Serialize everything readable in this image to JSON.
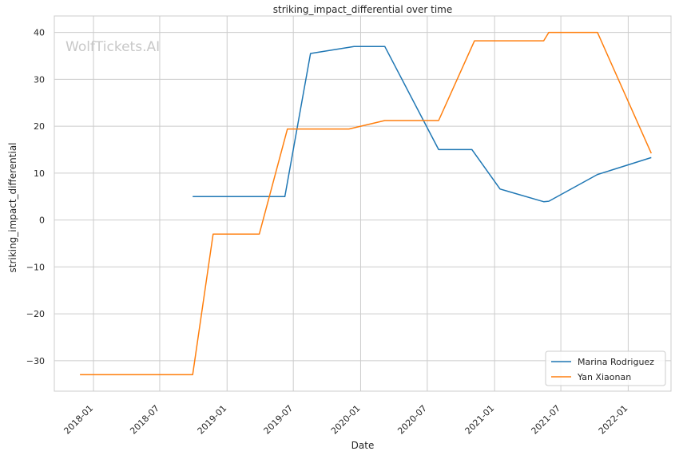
{
  "chart_data": {
    "type": "line",
    "title": "striking_impact_differential over time",
    "xlabel": "Date",
    "ylabel": "striking_impact_differential",
    "watermark": "WolfTickets.AI",
    "x_ticks": [
      "2018-01",
      "2018-07",
      "2019-01",
      "2019-07",
      "2020-01",
      "2020-07",
      "2021-01",
      "2021-07",
      "2022-01"
    ],
    "y_ticks": [
      40,
      30,
      20,
      10,
      0,
      -10,
      -20,
      -30
    ],
    "y_tick_labels": [
      "40",
      "30",
      "20",
      "10",
      "0",
      "−10",
      "−20",
      "−30"
    ],
    "xlim": [
      "2017-09-16",
      "2022-04-28"
    ],
    "ylim": [
      -36.5,
      43.5
    ],
    "grid": true,
    "legend_position": "lower-right",
    "series": [
      {
        "name": "Marina Rodriguez",
        "color": "#1f77b4",
        "points": [
          [
            "2018-09-29",
            5.0
          ],
          [
            "2019-06-08",
            5.0
          ],
          [
            "2019-08-17",
            35.5
          ],
          [
            "2019-12-14",
            37.0
          ],
          [
            "2020-03-07",
            37.0
          ],
          [
            "2020-08-01",
            15.0
          ],
          [
            "2020-10-31",
            15.0
          ],
          [
            "2021-01-16",
            6.6
          ],
          [
            "2021-05-15",
            3.9
          ],
          [
            "2021-05-29",
            4.0
          ],
          [
            "2021-10-09",
            9.7
          ],
          [
            "2022-03-05",
            13.3
          ]
        ]
      },
      {
        "name": "Yan Xiaonan",
        "color": "#ff7f0e",
        "points": [
          [
            "2017-11-25",
            -33.0
          ],
          [
            "2018-09-29",
            -33.0
          ],
          [
            "2018-11-24",
            -3.0
          ],
          [
            "2019-03-30",
            -3.0
          ],
          [
            "2019-06-15",
            19.4
          ],
          [
            "2019-11-30",
            19.4
          ],
          [
            "2020-03-07",
            21.2
          ],
          [
            "2020-08-01",
            21.2
          ],
          [
            "2020-11-07",
            38.2
          ],
          [
            "2021-05-15",
            38.2
          ],
          [
            "2021-05-29",
            40.0
          ],
          [
            "2021-10-09",
            40.0
          ],
          [
            "2022-03-05",
            14.2
          ]
        ]
      }
    ]
  }
}
